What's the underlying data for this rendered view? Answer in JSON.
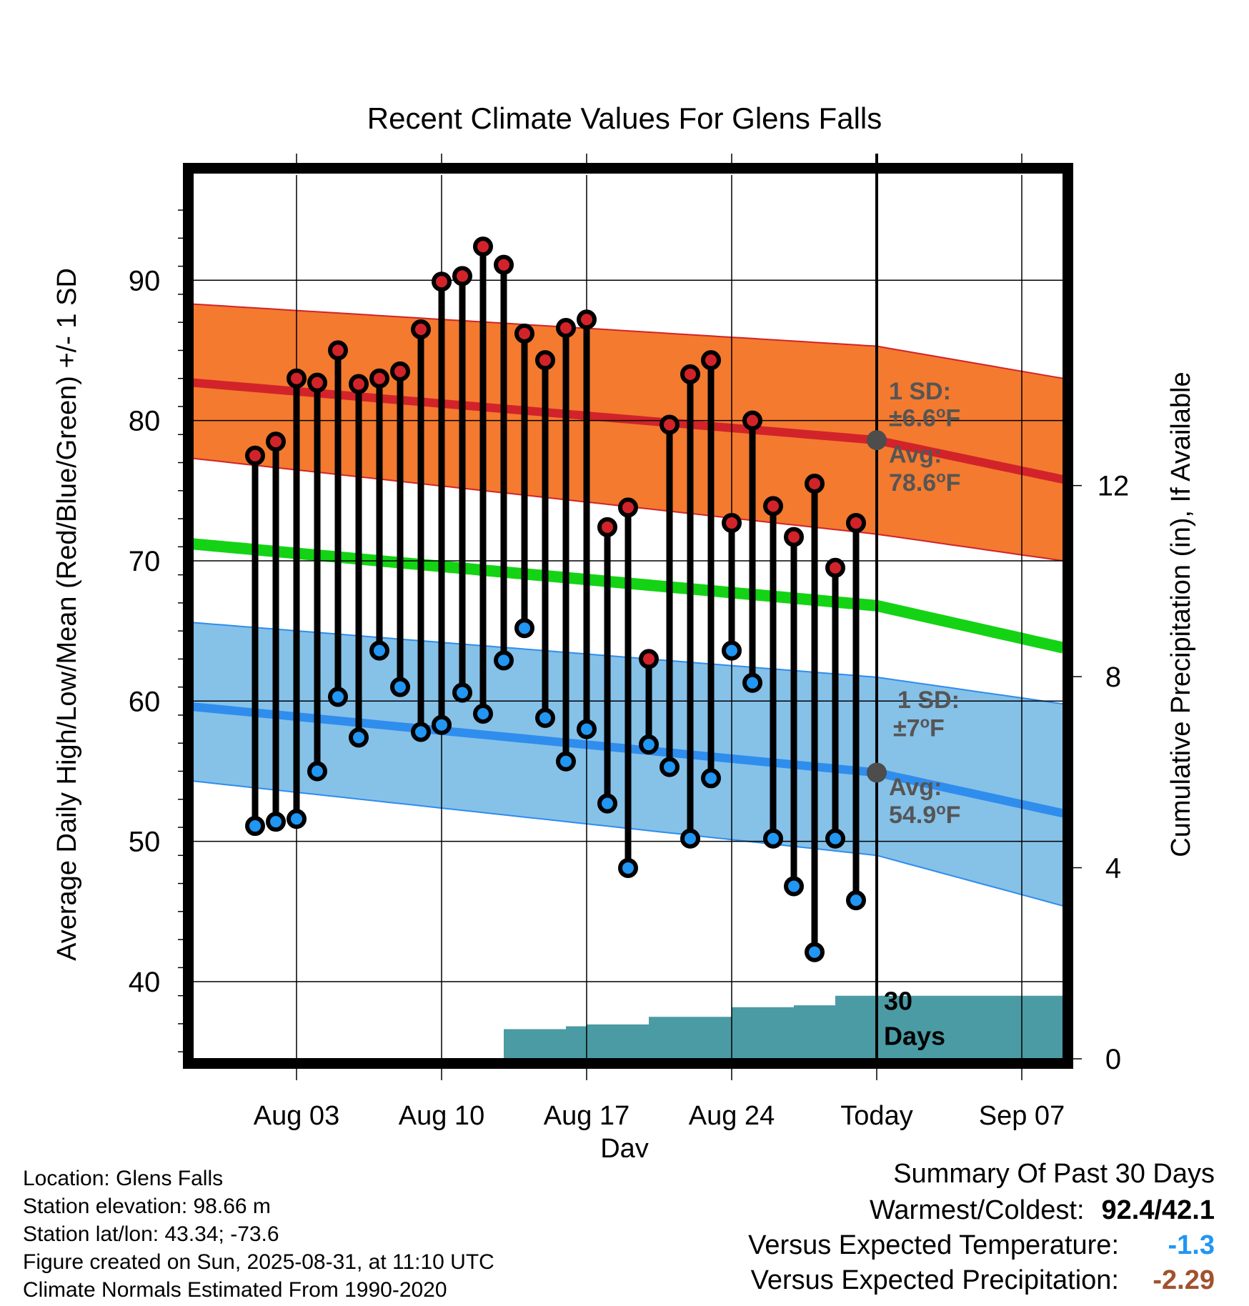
{
  "chart_data": {
    "type": "line",
    "title": "Recent Climate Values For Glens Falls",
    "xlabel": "Day",
    "ylabel": "Average Daily High/Low/Mean (Red/Blue/Green) +/- 1 SD",
    "y2label": "Cumulative Precipitation (in), If Available",
    "xlim": [
      "2025-07-29",
      "2025-09-09"
    ],
    "ylim": [
      34.5,
      97.5
    ],
    "y2lim": [
      0,
      18.5
    ],
    "yticks": [
      40,
      50,
      60,
      70,
      80,
      90
    ],
    "y2ticks": [
      0,
      4,
      8,
      12
    ],
    "xticks": [
      {
        "date": "2025-08-03",
        "label": "Aug 03"
      },
      {
        "date": "2025-08-10",
        "label": "Aug 10"
      },
      {
        "date": "2025-08-17",
        "label": "Aug 17"
      },
      {
        "date": "2025-08-24",
        "label": "Aug 24"
      },
      {
        "date": "2025-08-31",
        "label": "Today"
      },
      {
        "date": "2025-09-07",
        "label": "Sep 07"
      }
    ],
    "today": "2025-08-31",
    "grid": true,
    "observed": {
      "dates": [
        "2025-08-01",
        "2025-08-02",
        "2025-08-03",
        "2025-08-04",
        "2025-08-05",
        "2025-08-06",
        "2025-08-07",
        "2025-08-08",
        "2025-08-09",
        "2025-08-10",
        "2025-08-11",
        "2025-08-12",
        "2025-08-13",
        "2025-08-14",
        "2025-08-15",
        "2025-08-16",
        "2025-08-17",
        "2025-08-18",
        "2025-08-19",
        "2025-08-20",
        "2025-08-21",
        "2025-08-22",
        "2025-08-23",
        "2025-08-24",
        "2025-08-25",
        "2025-08-26",
        "2025-08-27",
        "2025-08-28",
        "2025-08-29",
        "2025-08-30"
      ],
      "highs": [
        77.5,
        78.5,
        83.0,
        82.7,
        85.0,
        82.6,
        83.0,
        83.5,
        86.5,
        89.9,
        90.3,
        92.4,
        91.1,
        86.2,
        84.3,
        86.6,
        87.2,
        72.4,
        73.8,
        63.0,
        79.7,
        83.3,
        84.3,
        72.7,
        80.0,
        73.9,
        71.7,
        75.5,
        69.5,
        72.7
      ],
      "lows": [
        51.1,
        51.4,
        51.6,
        55.0,
        60.3,
        57.4,
        63.6,
        61.0,
        57.8,
        58.3,
        60.6,
        59.1,
        62.9,
        65.2,
        58.8,
        55.7,
        58.0,
        52.7,
        48.1,
        56.9,
        55.3,
        50.2,
        54.5,
        63.6,
        61.3,
        50.2,
        46.8,
        42.1,
        50.2,
        45.8
      ]
    },
    "normals": {
      "dates": [
        "2025-07-29",
        "2025-08-31",
        "2025-09-09"
      ],
      "high_mean": [
        82.7,
        78.6,
        75.8
      ],
      "high_upper": [
        88.3,
        85.3,
        83.0
      ],
      "high_lower": [
        77.3,
        71.9,
        70.0
      ],
      "high_sd": "±6.6°F",
      "low_mean": [
        59.6,
        54.9,
        52.0
      ],
      "low_upper": [
        65.6,
        61.7,
        59.8
      ],
      "low_lower": [
        54.3,
        49.0,
        45.4
      ],
      "low_sd": "±7°F",
      "mean": [
        71.2,
        66.8,
        63.8
      ]
    },
    "precip": {
      "dates": [
        "2025-07-29",
        "2025-08-12",
        "2025-08-13",
        "2025-08-14",
        "2025-08-15",
        "2025-08-16",
        "2025-08-17",
        "2025-08-18",
        "2025-08-19",
        "2025-08-20",
        "2025-08-21",
        "2025-08-22",
        "2025-08-23",
        "2025-08-24",
        "2025-08-25",
        "2025-08-26",
        "2025-08-27",
        "2025-08-28",
        "2025-08-29",
        "2025-08-30",
        "2025-08-31",
        "2025-09-09"
      ],
      "cumulative": [
        0,
        0,
        0.62,
        0.62,
        0.62,
        0.68,
        0.72,
        0.72,
        0.72,
        0.88,
        0.88,
        0.88,
        0.88,
        1.08,
        1.08,
        1.08,
        1.12,
        1.12,
        1.32,
        1.32,
        1.32,
        1.32
      ]
    },
    "colors": {
      "high_band": "#f37a2f",
      "high_line": "#d2232a",
      "low_band": "#86c1e8",
      "low_line": "#2f8ded",
      "mean_line": "#14d314",
      "precip_fill": "#4a9ba4",
      "high_dot": "#d2232a",
      "low_dot": "#2196f3"
    },
    "annotations": {
      "high_sd_label": "1 SD:",
      "high_sd_value": "±6.6°F",
      "high_avg_label": "Avg:",
      "high_avg_value": "78.6°F",
      "low_sd_label": "1 SD:",
      "low_sd_value": "±7°F",
      "low_avg_label": "Avg:",
      "low_avg_value": "54.9°F",
      "window_number": "30",
      "window_label": "Days"
    }
  },
  "info": {
    "location": "Location: Glens Falls",
    "elevation": "Station elevation: 98.66 m",
    "latlon": "Station lat/lon: 43.34; -73.6",
    "created": "Figure created on Sun, 2025-08-31, at 11:10 UTC",
    "normals": "Climate Normals Estimated From 1990-2020"
  },
  "summary": {
    "title": "Summary Of Past 30 Days",
    "warmest_label": "Warmest/Coldest:",
    "warmest_value": "92.4/42.1",
    "temp_label": "Versus Expected Temperature:",
    "temp_value": "-1.3",
    "temp_color": "#2196f3",
    "precip_label": "Versus Expected Precipitation:",
    "precip_value": "-2.29",
    "precip_color": "#a0522d"
  }
}
